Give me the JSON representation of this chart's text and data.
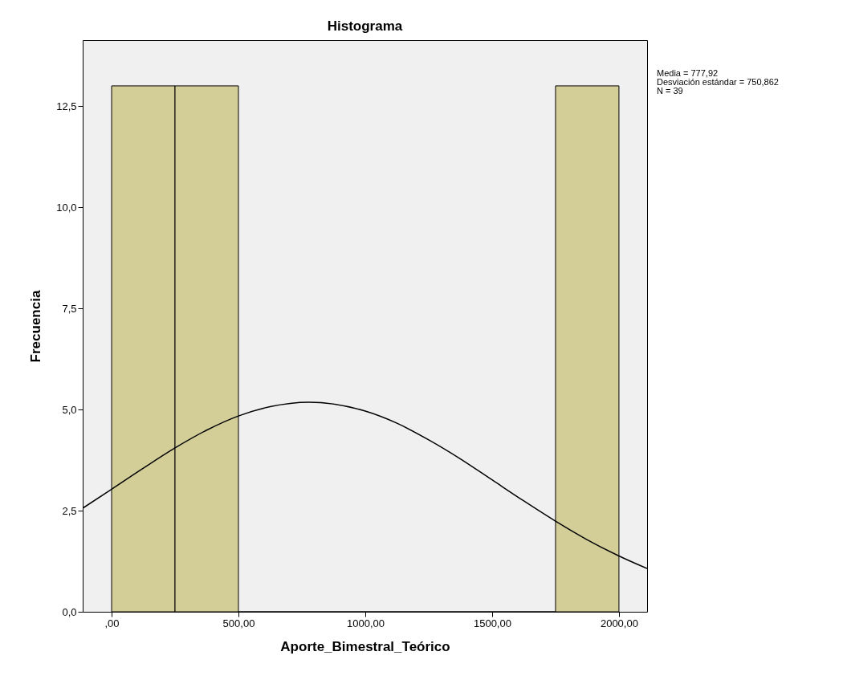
{
  "chart_data": {
    "type": "histogram",
    "title": "Histograma",
    "xlabel": "Aporte_Bimestral_Teórico",
    "ylabel": "Frecuencia",
    "bins": [
      0,
      250,
      500,
      750,
      1000,
      1250,
      1500,
      1750,
      2000
    ],
    "series": [
      {
        "color": "#d3ce97",
        "values": [
          13,
          13,
          0,
          0,
          0,
          0,
          0,
          13
        ]
      },
      {
        "type": "line",
        "color": "#000000",
        "x": [
          -114,
          0,
          125,
          250,
          375,
          500,
          625,
          778,
          1000,
          1125,
          1250,
          1375,
          1500,
          1625,
          1750,
          1875,
          2000,
          2111
        ],
        "values": [
          2.56,
          3.03,
          3.55,
          4.05,
          4.49,
          4.84,
          5.07,
          5.18,
          4.96,
          4.66,
          4.25,
          3.78,
          3.26,
          2.74,
          2.24,
          1.78,
          1.38,
          1.07
        ]
      }
    ],
    "xlim": [
      -114,
      2111
    ],
    "xticks": [
      {
        "value": 0,
        "label": ",00"
      },
      {
        "value": 500,
        "label": "500,00"
      },
      {
        "value": 1000,
        "label": "1000,00"
      },
      {
        "value": 1500,
        "label": "1500,00"
      },
      {
        "value": 2000,
        "label": "2000,00"
      }
    ],
    "ylim": [
      0,
      14.13
    ],
    "yticks": [
      {
        "value": 0,
        "label": "0,0"
      },
      {
        "value": 2.5,
        "label": "2,5"
      },
      {
        "value": 5,
        "label": "5,0"
      },
      {
        "value": 7.5,
        "label": "7,5"
      },
      {
        "value": 10,
        "label": "10,0"
      },
      {
        "value": 12.5,
        "label": "12,5"
      }
    ],
    "annotations": [
      "Media = 777,92",
      "Desviación estándar = 750,862",
      "N = 39"
    ],
    "grid": false
  }
}
